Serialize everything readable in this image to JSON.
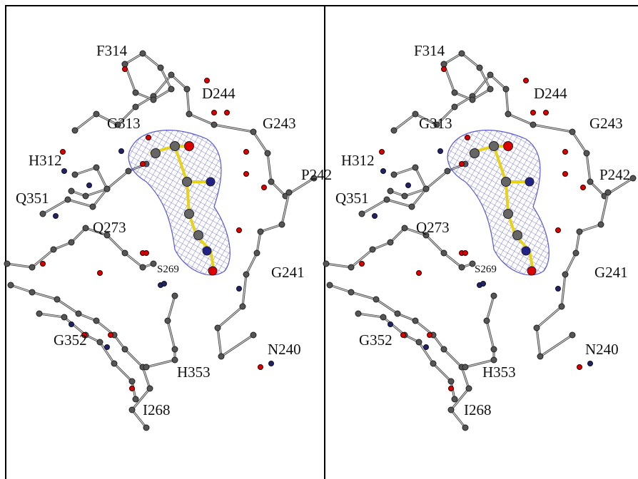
{
  "panels": [
    {
      "labels": [
        "F314",
        "D244",
        "G313",
        "G243",
        "H312",
        "P242",
        "Q351",
        "Q273",
        "G241",
        "S269",
        "G352",
        "N240",
        "H353",
        "I268"
      ]
    },
    {
      "labels": [
        "F314",
        "D244",
        "G313",
        "G243",
        "H312",
        "P242",
        "Q351",
        "Q273",
        "G241",
        "S269",
        "G352",
        "N240",
        "H353",
        "I268"
      ]
    }
  ]
}
